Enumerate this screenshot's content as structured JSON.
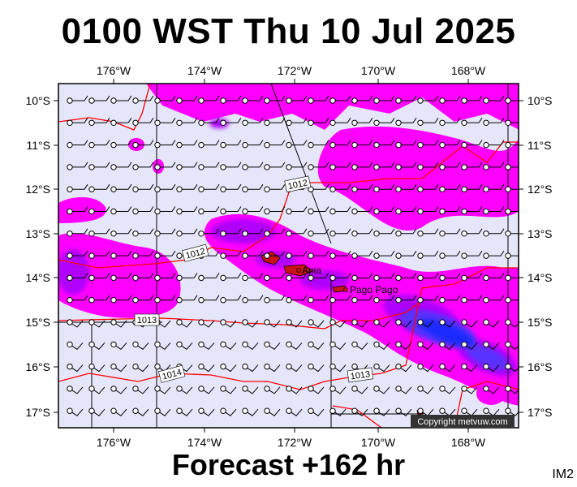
{
  "title": "0100 WST Thu 10 Jul 2025",
  "footer": "Forecast +162 hr",
  "code": "IM2",
  "copyright": "Copyright metvuw.com",
  "map": {
    "lon_labels": [
      "176°W",
      "174°W",
      "172°W",
      "170°W",
      "168°W"
    ],
    "lat_labels": [
      "10°S",
      "11°S",
      "12°S",
      "13°S",
      "14°S",
      "15°S",
      "16°S",
      "17°S"
    ],
    "isobar_labels": [
      "1012",
      "1012",
      "1013",
      "1013",
      "1014"
    ],
    "places": [
      "Apia",
      "Pago Pago"
    ]
  },
  "colors": {
    "background": "#e6e6fa",
    "rain_light": "#ff00ff",
    "rain_medium": "#b000ff",
    "rain_heavy": "#5a30ff",
    "rain_extreme": "#1a2bff",
    "isobar": "#ff0000"
  }
}
